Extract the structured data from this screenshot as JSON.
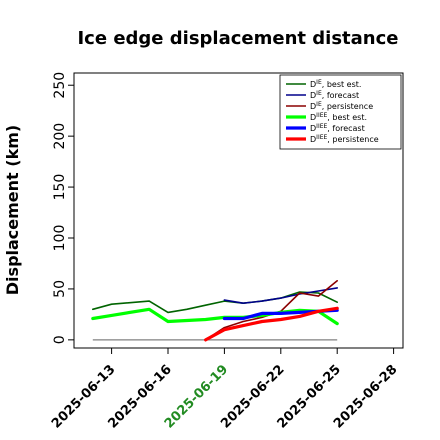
{
  "chart_data": {
    "type": "line",
    "title": "Ice edge displacement distance",
    "xlabel": "",
    "ylabel": "Displacement (km)",
    "ylim": [
      -8,
      262
    ],
    "xlim": [
      "2025-06-11",
      "2025-06-28 12:00"
    ],
    "y_ticks": [
      0,
      50,
      100,
      150,
      200,
      250
    ],
    "x_ticks": [
      "2025-06-13",
      "2025-06-16",
      "2025-06-19",
      "2025-06-22",
      "2025-06-25",
      "2025-06-28"
    ],
    "highlight_tick": "2025-06-19",
    "highlight_color": "#228b22",
    "grid": false,
    "legend_position": "top-right",
    "reference_line": {
      "x": [
        "2025-06-12",
        "2025-06-25"
      ],
      "y": 0,
      "color": "#808080"
    },
    "series": [
      {
        "name": "D^IE, best est.",
        "color": "#006400",
        "width": 1.6,
        "x": [
          "2025-06-12",
          "2025-06-13",
          "2025-06-15",
          "2025-06-16",
          "2025-06-17",
          "2025-06-18",
          "2025-06-19",
          "2025-06-20",
          "2025-06-21",
          "2025-06-22",
          "2025-06-23",
          "2025-06-24",
          "2025-06-25"
        ],
        "y": [
          30,
          35,
          38,
          27,
          30,
          34,
          38,
          36,
          38,
          41,
          47,
          46,
          37
        ]
      },
      {
        "name": "D^IE, forecast",
        "color": "#00008b",
        "width": 1.6,
        "x": [
          "2025-06-19",
          "2025-06-20",
          "2025-06-21",
          "2025-06-22",
          "2025-06-23",
          "2025-06-24",
          "2025-06-25"
        ],
        "y": [
          39,
          36,
          38,
          41,
          45,
          48,
          51
        ]
      },
      {
        "name": "D^IE, persistence",
        "color": "#8b0000",
        "width": 1.6,
        "x": [
          "2025-06-18",
          "2025-06-19",
          "2025-06-20",
          "2025-06-21",
          "2025-06-22",
          "2025-06-23",
          "2025-06-24",
          "2025-06-25"
        ],
        "y": [
          0,
          12,
          18,
          22,
          28,
          46,
          43,
          58
        ]
      },
      {
        "name": "D^IIEE, best est.",
        "color": "#00ff00",
        "width": 3.2,
        "x": [
          "2025-06-12",
          "2025-06-13",
          "2025-06-15",
          "2025-06-16",
          "2025-06-17",
          "2025-06-18",
          "2025-06-19",
          "2025-06-20",
          "2025-06-21",
          "2025-06-22",
          "2025-06-23",
          "2025-06-24",
          "2025-06-25"
        ],
        "y": [
          21,
          24,
          30,
          18,
          19,
          20,
          22,
          22,
          24,
          27,
          29,
          28,
          16
        ]
      },
      {
        "name": "D^IIEE, forecast",
        "color": "#0000ff",
        "width": 3.2,
        "x": [
          "2025-06-19",
          "2025-06-20",
          "2025-06-21",
          "2025-06-22",
          "2025-06-23",
          "2025-06-24",
          "2025-06-25"
        ],
        "y": [
          21,
          21,
          26,
          26,
          27,
          28,
          29
        ]
      },
      {
        "name": "D^IIEE, persistence",
        "color": "#ff0000",
        "width": 3.2,
        "x": [
          "2025-06-18",
          "2025-06-19",
          "2025-06-20",
          "2025-06-21",
          "2025-06-22",
          "2025-06-23",
          "2025-06-24",
          "2025-06-25"
        ],
        "y": [
          0,
          10,
          14,
          18,
          20,
          23,
          28,
          31
        ]
      }
    ]
  }
}
